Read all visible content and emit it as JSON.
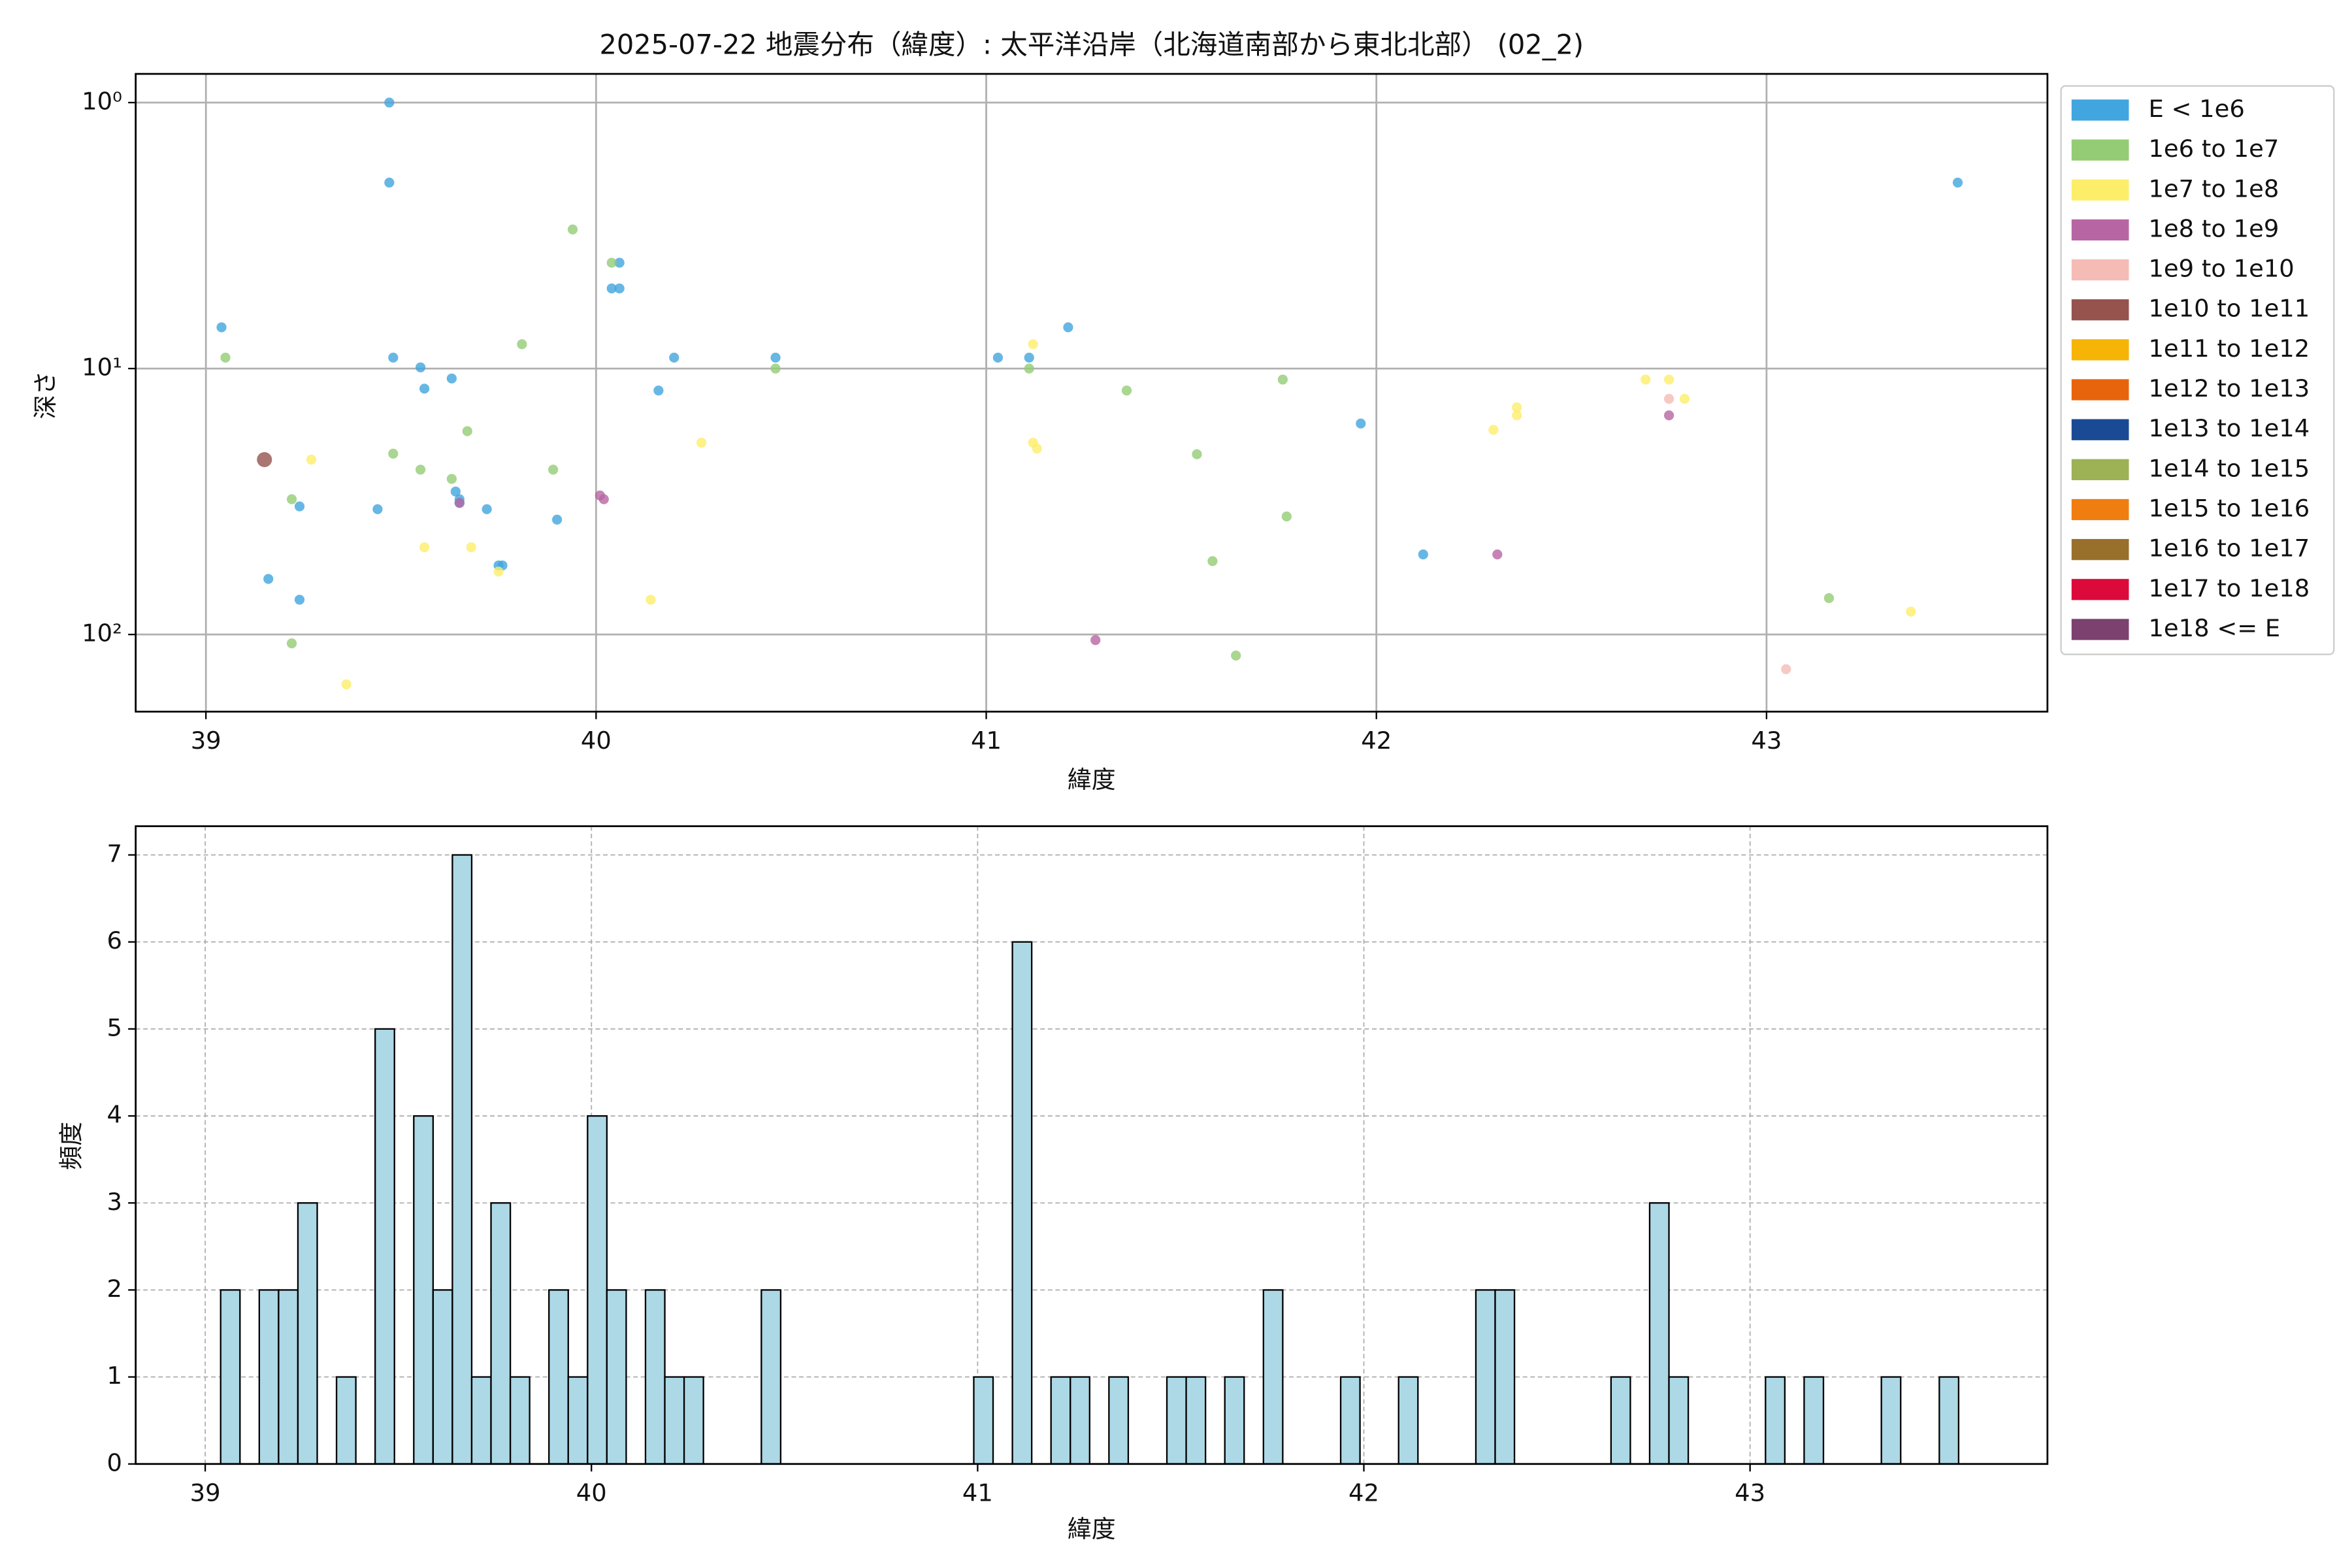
{
  "chart_data": [
    {
      "type": "scatter",
      "title": "2025-07-22 地震分布（緯度）: 太平洋沿岸（北海道南部から東北北部） (02_2)",
      "xlabel": "緯度",
      "ylabel": "深さ",
      "xlim": [
        38.82,
        43.72
      ],
      "xticks": [
        39,
        40,
        41,
        42,
        43
      ],
      "ylim": [
        0.78,
        195
      ],
      "yscale": "log",
      "y_inverted": true,
      "yticks": [
        {
          "value": 1,
          "label": "10⁰"
        },
        {
          "value": 10,
          "label": "10¹"
        },
        {
          "value": 100,
          "label": "10²"
        }
      ],
      "grid": true,
      "legend": "outside right",
      "series": [
        {
          "name": "E < 1e6",
          "color": "#41a5df",
          "x": [
            39.04,
            39.47,
            39.47,
            39.48,
            39.55,
            39.56,
            39.63,
            39.44,
            39.24,
            39.16,
            39.24,
            39.64,
            39.65,
            39.65,
            39.72,
            39.75,
            39.76,
            39.9,
            40.04,
            40.06,
            40.06,
            40.2,
            40.16,
            40.46,
            41.03,
            41.11,
            41.21,
            41.96,
            42.12,
            43.49
          ],
          "values": [
            7.0,
            1.0,
            2.0,
            9.1,
            9.9,
            11.9,
            10.9,
            33.8,
            33,
            61.8,
            74,
            29,
            31,
            32,
            33.8,
            55,
            55,
            37,
            5.0,
            5.0,
            4.0,
            9.1,
            12.1,
            9.1,
            9.1,
            9.1,
            7.0,
            16.1,
            50,
            2.0
          ]
        },
        {
          "name": "1e6 to 1e7",
          "color": "#93cc74",
          "x": [
            39.05,
            39.94,
            40.04,
            39.81,
            39.67,
            39.48,
            39.55,
            39.63,
            39.89,
            39.22,
            39.22,
            40.46,
            41.11,
            41.36,
            41.76,
            41.54,
            41.58,
            41.77,
            41.64,
            43.16
          ],
          "values": [
            9.1,
            3.0,
            4.0,
            8.1,
            17.2,
            20.9,
            24,
            26,
            24,
            31,
            108,
            10,
            10,
            12.1,
            11,
            21,
            53,
            36,
            120,
            73
          ]
        },
        {
          "name": "1e7 to 1e8",
          "color": "#fdee6a",
          "x": [
            41.12,
            41.12,
            41.13,
            40.27,
            40.14,
            39.27,
            39.56,
            39.68,
            39.75,
            39.36,
            42.3,
            42.36,
            42.36,
            42.69,
            42.75,
            42.79,
            43.37
          ],
          "values": [
            8.1,
            19,
            20,
            19,
            74,
            22,
            47,
            47,
            58,
            154,
            17,
            14,
            15,
            11,
            11,
            13,
            82
          ]
        },
        {
          "name": "1e8 to 1e9",
          "color": "#b865a3",
          "x": [
            39.65,
            40.01,
            40.02,
            41.28,
            42.31,
            42.75
          ],
          "values": [
            32,
            30,
            31,
            105,
            50,
            15
          ]
        },
        {
          "name": "1e9 to 1e10",
          "color": "#f5bbb5",
          "x": [
            42.75,
            43.05
          ],
          "values": [
            13,
            135
          ]
        },
        {
          "name": "1e10 to 1e11",
          "color": "#96524d",
          "x": [
            39.15
          ],
          "values": [
            22
          ]
        },
        {
          "name": "1e11 to 1e12",
          "color": "#f6b406",
          "x": [],
          "values": []
        },
        {
          "name": "1e12 to 1e13",
          "color": "#e8640c",
          "x": [],
          "values": []
        },
        {
          "name": "1e13 to 1e14",
          "color": "#1a4a93",
          "x": [],
          "values": []
        },
        {
          "name": "1e14 to 1e15",
          "color": "#9db155",
          "x": [],
          "values": []
        },
        {
          "name": "1e15 to 1e16",
          "color": "#f07d10",
          "x": [],
          "values": []
        },
        {
          "name": "1e16 to 1e17",
          "color": "#996f2c",
          "x": [],
          "values": []
        },
        {
          "name": "1e17 to 1e18",
          "color": "#dc0a3a",
          "x": [],
          "values": []
        },
        {
          "name": "1e18 <= E",
          "color": "#7c416f",
          "x": [],
          "values": []
        }
      ]
    },
    {
      "type": "histogram",
      "xlabel": "緯度",
      "ylabel": "頻度",
      "xlim": [
        38.82,
        43.77
      ],
      "xticks": [
        39,
        40,
        41,
        42,
        43
      ],
      "ylim": [
        0,
        7.33
      ],
      "yticks": [
        0,
        1,
        2,
        3,
        4,
        5,
        6,
        7
      ],
      "grid": true,
      "color": "#add8e6",
      "bins": [
        39.04,
        39.09,
        39.14,
        39.19,
        39.24,
        39.29,
        39.34,
        39.39,
        39.44,
        39.49,
        39.54,
        39.59,
        39.64,
        39.69,
        39.74,
        39.79,
        39.84,
        39.89,
        39.94,
        39.99,
        40.04,
        40.09,
        40.14,
        40.19,
        40.24,
        40.29,
        40.34,
        40.39,
        40.44,
        40.49,
        40.54,
        40.59,
        40.64,
        40.69,
        40.74,
        40.79,
        40.84,
        40.89,
        40.94,
        40.99,
        41.04,
        41.09,
        41.14,
        41.19,
        41.24,
        41.29,
        41.34,
        41.39,
        41.44,
        41.49,
        41.54,
        41.59,
        41.64,
        41.69,
        41.74,
        41.79,
        41.84,
        41.89,
        41.94,
        41.99,
        42.04,
        42.09,
        42.14,
        42.19,
        42.24,
        42.29,
        42.34,
        42.39,
        42.44,
        42.49,
        42.54,
        42.59,
        42.64,
        42.69,
        42.74,
        42.79,
        42.84,
        42.89,
        42.94,
        42.99,
        43.04,
        43.09,
        43.14,
        43.19,
        43.24,
        43.29,
        43.34,
        43.39,
        43.44,
        43.49,
        43.54
      ],
      "values": [
        2,
        0,
        2,
        2,
        3,
        0,
        1,
        0,
        5,
        0,
        4,
        2,
        7,
        1,
        3,
        1,
        0,
        2,
        1,
        4,
        2,
        0,
        2,
        1,
        1,
        0,
        0,
        0,
        2,
        0,
        0,
        0,
        0,
        0,
        0,
        0,
        0,
        0,
        0,
        1,
        0,
        6,
        0,
        1,
        1,
        0,
        1,
        0,
        0,
        1,
        1,
        0,
        1,
        0,
        2,
        0,
        0,
        0,
        1,
        0,
        0,
        1,
        0,
        0,
        0,
        2,
        2,
        0,
        0,
        0,
        0,
        0,
        1,
        0,
        3,
        1,
        0,
        0,
        0,
        0,
        1,
        0,
        1,
        0,
        0,
        0,
        1,
        0,
        0,
        1
      ]
    }
  ]
}
